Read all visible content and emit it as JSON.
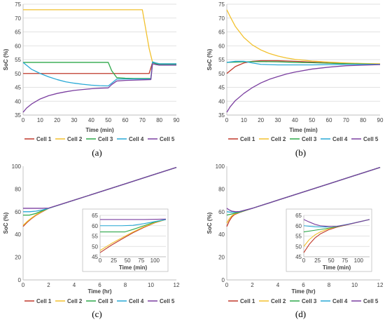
{
  "colors": {
    "cell1": "#c0392b",
    "cell2": "#f2c12e",
    "cell3": "#2ea84a",
    "cell4": "#29a9d6",
    "cell5": "#7b3fa0",
    "axis": "#bfbfbf",
    "grid": "#d9d9d9",
    "text": "#404040"
  },
  "chart_data": [
    {
      "type": "line",
      "panel": "(a)",
      "xlabel": "Time (min)",
      "ylabel": "SoC (%)",
      "xlim": [
        0,
        90
      ],
      "ylim": [
        35,
        75
      ],
      "xticks": [
        0,
        10,
        20,
        30,
        40,
        50,
        60,
        70,
        80,
        90
      ],
      "yticks": [
        35,
        40,
        45,
        50,
        55,
        60,
        65,
        70,
        75
      ],
      "grid": true,
      "legend": "bottom",
      "series": [
        {
          "name": "Cell 1",
          "x": [
            0,
            10,
            20,
            30,
            40,
            50,
            55,
            60,
            65,
            70,
            74,
            76,
            78,
            80,
            90
          ],
          "y": [
            50,
            50,
            50,
            50,
            50,
            50,
            50,
            50,
            50,
            50,
            50,
            54,
            53.5,
            53,
            53
          ]
        },
        {
          "name": "Cell 2",
          "x": [
            0,
            10,
            20,
            30,
            40,
            50,
            60,
            65,
            70,
            72,
            74,
            76,
            78,
            80,
            90
          ],
          "y": [
            73,
            73,
            73,
            73,
            73,
            73,
            73,
            73,
            73,
            66,
            59,
            54,
            53.8,
            53.5,
            53.5
          ]
        },
        {
          "name": "Cell 3",
          "x": [
            0,
            10,
            20,
            30,
            40,
            50,
            52,
            55,
            60,
            65,
            70,
            75,
            76,
            78,
            80,
            90
          ],
          "y": [
            54,
            54,
            54,
            54,
            54,
            54,
            51,
            48.5,
            48.3,
            48.2,
            48.2,
            48.2,
            54,
            53.5,
            53.2,
            53.2
          ]
        },
        {
          "name": "Cell 4",
          "x": [
            0,
            5,
            10,
            15,
            20,
            25,
            30,
            35,
            40,
            45,
            50,
            52,
            55,
            60,
            65,
            70,
            75,
            76,
            78,
            80,
            90
          ],
          "y": [
            54,
            51.5,
            50,
            48.8,
            47.8,
            47,
            46.5,
            46.1,
            45.8,
            45.6,
            45.5,
            46.5,
            48,
            48,
            48,
            48,
            48,
            54.2,
            53.8,
            53.5,
            53.5
          ]
        },
        {
          "name": "Cell 5",
          "x": [
            0,
            2,
            5,
            10,
            15,
            20,
            25,
            30,
            35,
            40,
            45,
            50,
            52,
            55,
            60,
            65,
            70,
            75,
            76,
            78,
            80,
            90
          ],
          "y": [
            36,
            37.5,
            39,
            40.8,
            42,
            42.8,
            43.4,
            43.9,
            44.2,
            44.5,
            44.7,
            44.8,
            46,
            47.3,
            47.5,
            47.6,
            47.7,
            47.8,
            53.5,
            53.2,
            53,
            53
          ]
        }
      ]
    },
    {
      "type": "line",
      "panel": "(b)",
      "xlabel": "Time (min)",
      "ylabel": "SoC (%)",
      "xlim": [
        0,
        90
      ],
      "ylim": [
        35,
        75
      ],
      "xticks": [
        0,
        10,
        20,
        30,
        40,
        50,
        60,
        70,
        80,
        90
      ],
      "yticks": [
        35,
        40,
        45,
        50,
        55,
        60,
        65,
        70,
        75
      ],
      "grid": true,
      "legend": "bottom",
      "series": [
        {
          "name": "Cell 1",
          "x": [
            0,
            2,
            5,
            10,
            15,
            20,
            30,
            40,
            50,
            60,
            70,
            80,
            90
          ],
          "y": [
            50,
            51,
            52.5,
            53.8,
            54.4,
            54.6,
            54.6,
            54.4,
            54.1,
            53.8,
            53.6,
            53.4,
            53.3
          ]
        },
        {
          "name": "Cell 2",
          "x": [
            0,
            2,
            5,
            10,
            15,
            20,
            25,
            30,
            35,
            40,
            50,
            60,
            70,
            80,
            90
          ],
          "y": [
            73,
            70.5,
            67,
            63,
            60.3,
            58.5,
            57.2,
            56.3,
            55.6,
            55.1,
            54.5,
            54.1,
            53.8,
            53.6,
            53.5
          ]
        },
        {
          "name": "Cell 3",
          "x": [
            0,
            10,
            20,
            30,
            40,
            50,
            60,
            70,
            80,
            90
          ],
          "y": [
            54,
            54.2,
            54.3,
            54.2,
            54,
            53.9,
            53.7,
            53.5,
            53.4,
            53.3
          ]
        },
        {
          "name": "Cell 4",
          "x": [
            0,
            5,
            10,
            15,
            20,
            30,
            40,
            50,
            60,
            70,
            80,
            90
          ],
          "y": [
            54,
            54.4,
            54.4,
            53.8,
            53.3,
            53.1,
            53.1,
            53.1,
            53.2,
            53.3,
            53.3,
            53.3
          ]
        },
        {
          "name": "Cell 5",
          "x": [
            0,
            2,
            5,
            10,
            15,
            20,
            25,
            30,
            35,
            40,
            50,
            60,
            70,
            80,
            90
          ],
          "y": [
            36,
            38,
            40.2,
            42.8,
            44.9,
            46.6,
            47.9,
            48.9,
            49.8,
            50.5,
            51.6,
            52.3,
            52.8,
            53,
            53.2
          ]
        }
      ]
    },
    {
      "type": "line",
      "panel": "(c)",
      "xlabel": "Time (hr)",
      "ylabel": "SoC (%)",
      "xlim": [
        0,
        12
      ],
      "ylim": [
        0,
        100
      ],
      "xticks": [
        0,
        2,
        4,
        6,
        8,
        10,
        12
      ],
      "yticks": [
        0,
        20,
        40,
        60,
        80,
        100
      ],
      "grid": false,
      "legend": "bottom",
      "series": [
        {
          "name": "Cell 1",
          "x": [
            0,
            0.3,
            0.6,
            1,
            1.5,
            2,
            4,
            6,
            8,
            10,
            12
          ],
          "y": [
            47,
            50.5,
            53.5,
            56.8,
            60,
            63,
            70.2,
            77.4,
            84.6,
            91.8,
            99
          ]
        },
        {
          "name": "Cell 2",
          "x": [
            0,
            0.3,
            0.6,
            1,
            1.5,
            2,
            4,
            6,
            8,
            10,
            12
          ],
          "y": [
            48,
            51.2,
            54,
            57.2,
            60.3,
            63,
            70.2,
            77.4,
            84.6,
            91.8,
            99
          ]
        },
        {
          "name": "Cell 3",
          "x": [
            0,
            0.5,
            1,
            1.5,
            2,
            4,
            6,
            8,
            10,
            12
          ],
          "y": [
            57,
            57,
            58.5,
            60.8,
            63,
            70.2,
            77.4,
            84.6,
            91.8,
            99
          ]
        },
        {
          "name": "Cell 4",
          "x": [
            0,
            0.5,
            1,
            1.5,
            2,
            4,
            6,
            8,
            10,
            12
          ],
          "y": [
            60,
            60,
            60.5,
            61.5,
            63,
            70.2,
            77.4,
            84.6,
            91.8,
            99
          ]
        },
        {
          "name": "Cell 5",
          "x": [
            0,
            0.5,
            1,
            1.5,
            2,
            4,
            6,
            8,
            10,
            12
          ],
          "y": [
            63,
            63,
            63,
            63,
            63.2,
            70.2,
            77.4,
            84.6,
            91.8,
            99
          ]
        }
      ],
      "inset": {
        "xlabel": "Time (min)",
        "xlim": [
          0,
          120
        ],
        "ylim": [
          45,
          65
        ],
        "xticks": [
          0,
          25,
          50,
          75,
          100
        ],
        "yticks": [
          45,
          50,
          55,
          60,
          65
        ],
        "series": [
          {
            "name": "Cell 1",
            "x": [
              0,
              20,
              40,
              60,
              80,
              100,
              120
            ],
            "y": [
              47,
              50.5,
              53.6,
              56.6,
              59.2,
              61.4,
              63
            ]
          },
          {
            "name": "Cell 2",
            "x": [
              0,
              20,
              40,
              60,
              80,
              100,
              120
            ],
            "y": [
              48,
              51.3,
              54.2,
              57,
              59.5,
              61.5,
              63
            ]
          },
          {
            "name": "Cell 3",
            "x": [
              0,
              25,
              45,
              60,
              80,
              100,
              120
            ],
            "y": [
              57,
              57,
              57,
              58.2,
              60,
              61.8,
              63
            ]
          },
          {
            "name": "Cell 4",
            "x": [
              0,
              40,
              60,
              80,
              100,
              120
            ],
            "y": [
              60,
              60,
              60.2,
              61,
              62,
              63
            ]
          },
          {
            "name": "Cell 5",
            "x": [
              0,
              40,
              80,
              120
            ],
            "y": [
              63,
              63,
              63,
              63.2
            ]
          }
        ]
      }
    },
    {
      "type": "line",
      "panel": "(d)",
      "xlabel": "Time (hr)",
      "ylabel": "SoC (%)",
      "xlim": [
        0,
        12
      ],
      "ylim": [
        0,
        100
      ],
      "xticks": [
        0,
        2,
        4,
        6,
        8,
        10,
        12
      ],
      "yticks": [
        0,
        20,
        40,
        60,
        80,
        100
      ],
      "grid": false,
      "legend": "bottom",
      "series": [
        {
          "name": "Cell 1",
          "x": [
            0,
            0.2,
            0.4,
            0.6,
            1,
            2,
            4,
            6,
            8,
            10,
            12
          ],
          "y": [
            47,
            52,
            55.5,
            57.5,
            59.3,
            63,
            70.2,
            77.4,
            84.6,
            91.8,
            99
          ]
        },
        {
          "name": "Cell 2",
          "x": [
            0,
            0.2,
            0.4,
            0.6,
            1,
            2,
            4,
            6,
            8,
            10,
            12
          ],
          "y": [
            50,
            54,
            56.5,
            58,
            59.5,
            63,
            70.2,
            77.4,
            84.6,
            91.8,
            99
          ]
        },
        {
          "name": "Cell 3",
          "x": [
            0,
            0.3,
            0.6,
            1,
            2,
            4,
            6,
            8,
            10,
            12
          ],
          "y": [
            57,
            57.8,
            58.6,
            59.6,
            63,
            70.2,
            77.4,
            84.6,
            91.8,
            99
          ]
        },
        {
          "name": "Cell 4",
          "x": [
            0,
            0.3,
            0.6,
            1,
            2,
            4,
            6,
            8,
            10,
            12
          ],
          "y": [
            60,
            59.6,
            59.6,
            60,
            63,
            70.2,
            77.4,
            84.6,
            91.8,
            99
          ]
        },
        {
          "name": "Cell 5",
          "x": [
            0,
            0.2,
            0.4,
            0.7,
            1,
            2,
            4,
            6,
            8,
            10,
            12
          ],
          "y": [
            63,
            61.5,
            60.5,
            60,
            60.2,
            63,
            70.2,
            77.4,
            84.6,
            91.8,
            99
          ]
        }
      ],
      "inset": {
        "xlabel": "Time (min)",
        "xlim": [
          0,
          120
        ],
        "ylim": [
          45,
          65
        ],
        "xticks": [
          0,
          25,
          50,
          75,
          100
        ],
        "yticks": [
          45,
          50,
          55,
          60,
          65
        ],
        "series": [
          {
            "name": "Cell 1",
            "x": [
              0,
              10,
              20,
              30,
              45,
              60,
              80,
              100,
              120
            ],
            "y": [
              47,
              51,
              54,
              56,
              58,
              59.3,
              60.5,
              61.8,
              63
            ]
          },
          {
            "name": "Cell 2",
            "x": [
              0,
              10,
              20,
              30,
              45,
              60,
              80,
              100,
              120
            ],
            "y": [
              50,
              53.3,
              55.5,
              57,
              58.5,
              59.5,
              60.6,
              61.8,
              63
            ]
          },
          {
            "name": "Cell 3",
            "x": [
              0,
              20,
              40,
              60,
              80,
              100,
              120
            ],
            "y": [
              57,
              57.8,
              58.6,
              59.5,
              60.6,
              61.8,
              63
            ]
          },
          {
            "name": "Cell 4",
            "x": [
              0,
              20,
              40,
              60,
              80,
              100,
              120
            ],
            "y": [
              60,
              59.5,
              59.4,
              59.7,
              60.7,
              61.8,
              63
            ]
          },
          {
            "name": "Cell 5",
            "x": [
              0,
              10,
              20,
              30,
              45,
              60,
              80,
              100,
              120
            ],
            "y": [
              63,
              61.8,
              60.7,
              60,
              59.6,
              59.7,
              60.6,
              61.8,
              63
            ]
          }
        ]
      }
    }
  ]
}
